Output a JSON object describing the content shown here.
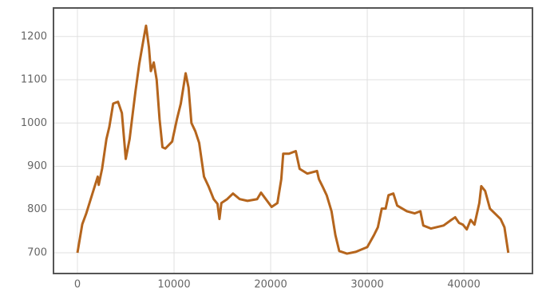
{
  "chart_data": {
    "type": "line",
    "x": [
      0,
      500,
      900,
      1500,
      2100,
      2200,
      2550,
      3000,
      3300,
      3700,
      4200,
      4600,
      4900,
      5000,
      5400,
      5700,
      6000,
      6400,
      6900,
      7100,
      7400,
      7600,
      7900,
      8200,
      8500,
      8800,
      9100,
      9800,
      10300,
      10700,
      11200,
      11500,
      11800,
      12200,
      12600,
      13100,
      13600,
      14100,
      14500,
      14700,
      14900,
      15500,
      16100,
      16800,
      17600,
      18600,
      19000,
      20100,
      20700,
      21100,
      21300,
      21900,
      22600,
      23000,
      23800,
      24800,
      25000,
      25400,
      25800,
      26300,
      26700,
      27100,
      27900,
      28800,
      30000,
      30700,
      31100,
      31500,
      31900,
      32200,
      32700,
      33100,
      34100,
      34900,
      35500,
      35800,
      36600,
      37900,
      38700,
      39100,
      39500,
      39900,
      40300,
      40700,
      41100,
      41600,
      41800,
      42200,
      42700,
      43200,
      43800,
      44200,
      44600
    ],
    "series": [
      {
        "color": "#b5651d",
        "values": [
          700,
          766,
          790,
          833,
          876,
          857,
          894,
          963,
          991,
          1045,
          1049,
          1023,
          944,
          917,
          963,
          1018,
          1072,
          1137,
          1201,
          1225,
          1175,
          1120,
          1140,
          1100,
          1009,
          944,
          941,
          957,
          1009,
          1045,
          1115,
          1082,
          1000,
          981,
          954,
          876,
          852,
          824,
          813,
          778,
          815,
          824,
          837,
          824,
          820,
          824,
          839,
          806,
          815,
          870,
          929,
          929,
          935,
          894,
          883,
          889,
          870,
          852,
          833,
          796,
          741,
          704,
          698,
          702,
          713,
          741,
          759,
          802,
          802,
          833,
          837,
          809,
          796,
          791,
          796,
          763,
          756,
          763,
          776,
          782,
          769,
          765,
          754,
          776,
          765,
          815,
          854,
          843,
          802,
          791,
          778,
          759,
          700
        ]
      }
    ],
    "xlim": [
      -2480,
      47100
    ],
    "xticks": [
      0,
      10000,
      20000,
      30000,
      40000
    ],
    "ylim": [
      652,
      1266
    ],
    "yticks": [
      700,
      800,
      900,
      1000,
      1100,
      1200
    ],
    "grid": true
  }
}
